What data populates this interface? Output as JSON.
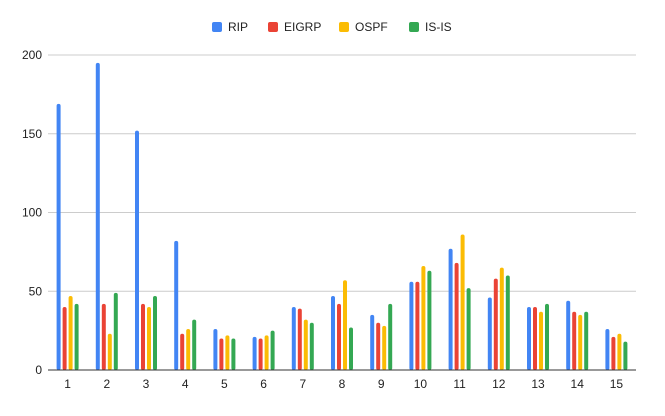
{
  "chart_data": {
    "type": "bar",
    "title": "",
    "xlabel": "",
    "ylabel": "",
    "categories": [
      "1",
      "2",
      "3",
      "4",
      "5",
      "6",
      "7",
      "8",
      "9",
      "10",
      "11",
      "12",
      "13",
      "14",
      "15"
    ],
    "ylim": [
      0,
      200
    ],
    "yticks": [
      0,
      50,
      100,
      150,
      200
    ],
    "grid": true,
    "legend_position": "top",
    "series": [
      {
        "name": "RIP",
        "color": "#4285f4",
        "values": [
          169,
          195,
          152,
          82,
          26,
          21,
          40,
          47,
          35,
          56,
          77,
          46,
          40,
          44,
          26
        ]
      },
      {
        "name": "EIGRP",
        "color": "#ea4335",
        "values": [
          40,
          42,
          42,
          23,
          20,
          20,
          39,
          42,
          30,
          56,
          68,
          58,
          40,
          37,
          21
        ]
      },
      {
        "name": "OSPF",
        "color": "#fbbc04",
        "values": [
          47,
          23,
          40,
          26,
          22,
          22,
          32,
          57,
          28,
          66,
          86,
          65,
          37,
          35,
          23
        ]
      },
      {
        "name": "IS-IS",
        "color": "#34a853",
        "values": [
          42,
          49,
          47,
          32,
          20,
          25,
          30,
          27,
          42,
          63,
          52,
          60,
          42,
          37,
          18
        ]
      }
    ]
  }
}
